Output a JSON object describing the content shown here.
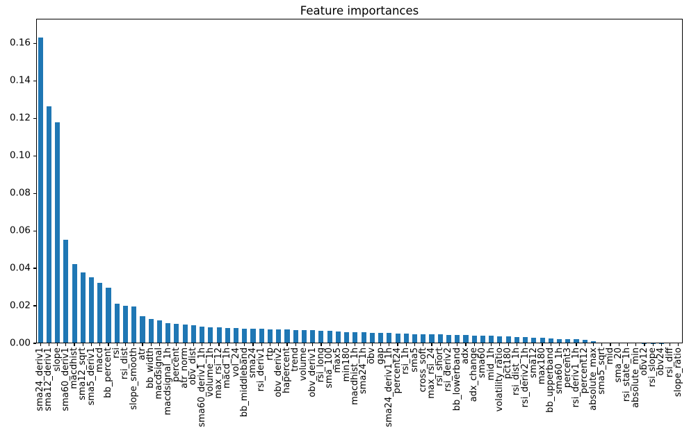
{
  "figure": {
    "background": "#ffffff",
    "spine_color": "#000000",
    "text_color": "#000000"
  },
  "chart_data": {
    "type": "bar",
    "title": "Feature importances",
    "xlabel": "",
    "ylabel": "",
    "bar_color": "#1f77b4",
    "grid": false,
    "legend_position": "none",
    "x_tick_rotation": 90,
    "ylim": [
      0,
      0.173
    ],
    "ytick_values": [
      0.0,
      0.02,
      0.04,
      0.06,
      0.08,
      0.1,
      0.12,
      0.14,
      0.16
    ],
    "ytick_labels": [
      "0.00",
      "0.02",
      "0.04",
      "0.06",
      "0.08",
      "0.10",
      "0.12",
      "0.14",
      "0.16"
    ],
    "categories": [
      "sma24_deriv1",
      "sma12_deriv1",
      "slope",
      "sma60_deriv1",
      "macdhist",
      "sma12_sqrt",
      "sma5_deriv1",
      "macd",
      "bb_percent",
      "rsi",
      "rsi_dist",
      "slope_smooth",
      "atr",
      "bb_width",
      "macdsignal",
      "macdsignal_1h",
      "percent",
      "atr_norm",
      "obv_dist",
      "sma60_deriv1_1h",
      "volume_1h",
      "max_rsi_12",
      "macd_1h",
      "vol_24",
      "bb_middleband",
      "sma24",
      "rsi_deriv1",
      "rtp",
      "obv_deriv2",
      "hapercent",
      "trend",
      "volume",
      "obv_deriv1",
      "rsi_long",
      "sma_100",
      "max5",
      "min180",
      "macdhist_1h",
      "sma24_1h",
      "obv",
      "gap",
      "sma24_deriv1_1h",
      "percent24",
      "rsi_1h",
      "sma5",
      "cross_soft",
      "max_rsi_24",
      "rsi_short",
      "rsi_deriv2",
      "bb_lowerband",
      "adx",
      "adx_change",
      "sma60",
      "mid_1h",
      "volatility_ratio",
      "pct180",
      "rsi_dist_1h",
      "rsi_deriv2_1h",
      "sma12",
      "max180",
      "bb_upperband",
      "sma60_1h",
      "percent3",
      "rsi_deriv1_1h",
      "percent12",
      "absolute_max",
      "sma5_sqrt",
      "mid",
      "sma_20",
      "rsi_state_1h",
      "absolute_min",
      "obv12",
      "rsi_slope",
      "obv24",
      "rsi_diff",
      "slope_ratio"
    ],
    "values": [
      0.163,
      0.1263,
      0.118,
      0.0552,
      0.0423,
      0.0377,
      0.0352,
      0.0322,
      0.0296,
      0.0212,
      0.0201,
      0.0198,
      0.0146,
      0.0131,
      0.0121,
      0.0106,
      0.0104,
      0.0101,
      0.0096,
      0.0088,
      0.0086,
      0.0084,
      0.0082,
      0.008,
      0.0079,
      0.0078,
      0.0077,
      0.0075,
      0.0074,
      0.0073,
      0.0072,
      0.0071,
      0.007,
      0.0068,
      0.0066,
      0.0063,
      0.0061,
      0.0059,
      0.0058,
      0.0057,
      0.0056,
      0.0055,
      0.0053,
      0.0051,
      0.005,
      0.0049,
      0.0048,
      0.0047,
      0.0045,
      0.0044,
      0.0043,
      0.0041,
      0.004,
      0.0039,
      0.0037,
      0.0036,
      0.0034,
      0.0032,
      0.003,
      0.0028,
      0.0026,
      0.0024,
      0.0023,
      0.0021,
      0.0019,
      0.0012,
      0.0005,
      0.0004,
      0.0003,
      0.0002,
      0.0002,
      0.0001,
      0.0001,
      0.0001,
      0.0,
      0.0
    ]
  }
}
